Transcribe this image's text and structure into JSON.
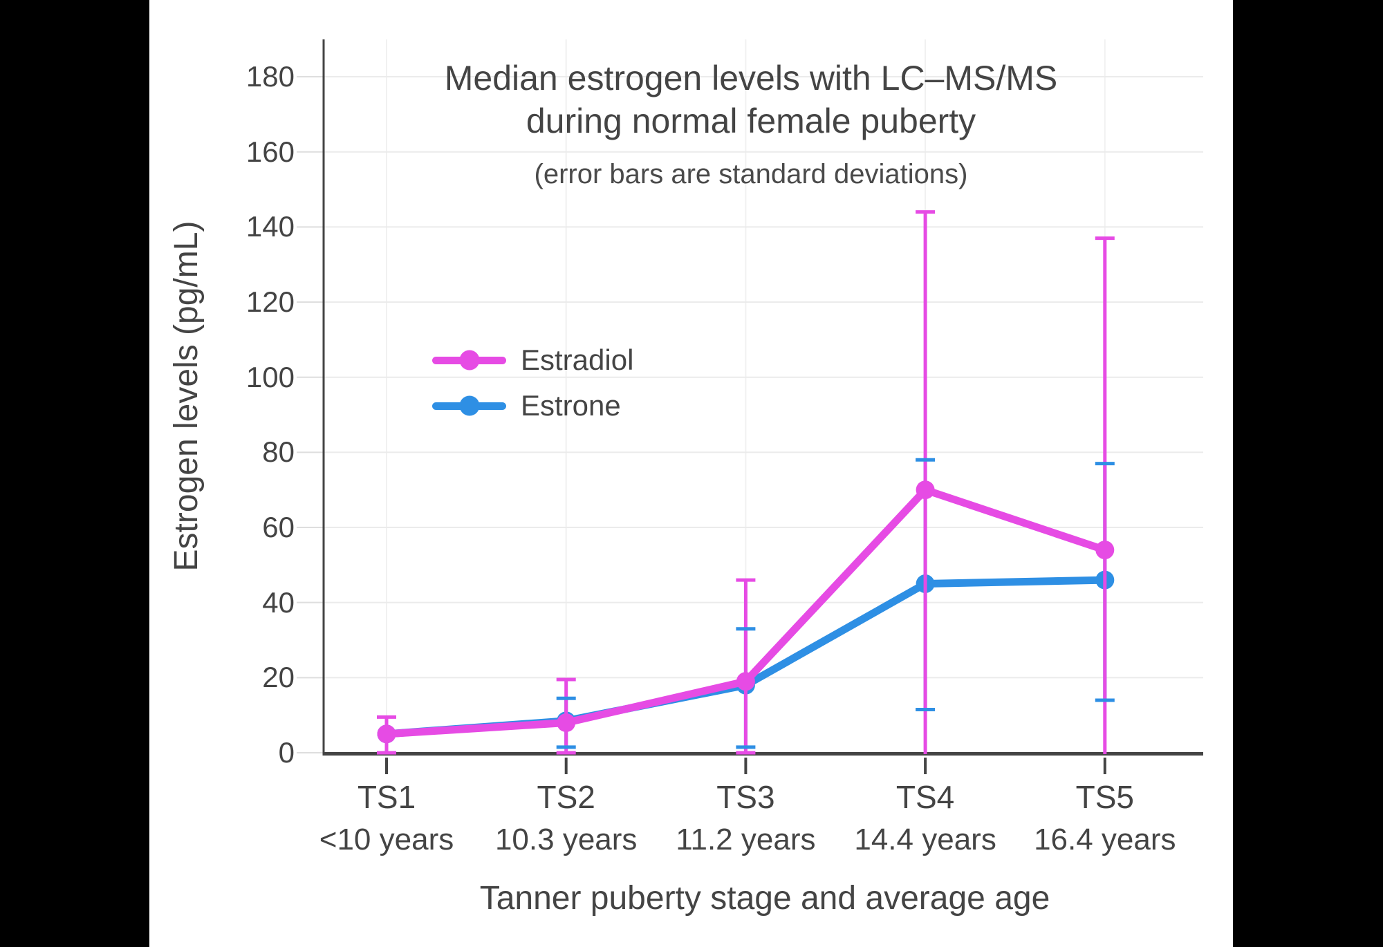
{
  "colors": {
    "page_background": "#000000",
    "chart_background": "#ffffff",
    "text": "#444444",
    "axis": "#444444",
    "grid_horizontal": "#ebebeb",
    "grid_vertical": "#f1f1f1",
    "tick_stub": "#dedede"
  },
  "header": {
    "title_line1": "Median estrogen levels with LC–MS/MS",
    "title_line2": "during normal female puberty",
    "subtitle": "(error bars are standard deviations)"
  },
  "axes": {
    "y_title": "Estrogen levels (pg/mL)",
    "x_title": "Tanner puberty stage and average age",
    "y_ticks": [
      0,
      20,
      40,
      60,
      80,
      100,
      120,
      140,
      160,
      180
    ]
  },
  "chart_data": {
    "type": "line",
    "title": "Median estrogen levels with LC–MS/MS during normal female puberty",
    "subtitle": "(error bars are standard deviations)",
    "xlabel": "Tanner puberty stage and average age",
    "ylabel": "Estrogen levels (pg/mL)",
    "categories": [
      "TS1",
      "TS2",
      "TS3",
      "TS4",
      "TS5"
    ],
    "category_sublabels": [
      "<10 years",
      "10.3 years",
      "11.2 years",
      "14.4 years",
      "16.4 years"
    ],
    "ylim": [
      0,
      190
    ],
    "ytick_step": 20,
    "grid": true,
    "legend_position": "inside top-left",
    "error_bars": "standard deviations",
    "series": [
      {
        "name": "Estradiol",
        "color": "#e64be4",
        "values": [
          5,
          8,
          19,
          70,
          54
        ],
        "error_high": [
          9.5,
          19.5,
          46,
          144,
          137
        ],
        "error_low": [
          0,
          0,
          0,
          0,
          0
        ],
        "error_low_capped": [
          true,
          true,
          true,
          false,
          false
        ]
      },
      {
        "name": "Estrone",
        "color": "#2e8fe4",
        "values": [
          5,
          8.5,
          18,
          45,
          46
        ],
        "error_high": [
          null,
          14.5,
          33,
          78,
          77
        ],
        "error_low": [
          null,
          1.5,
          1.5,
          11.5,
          14
        ],
        "error_low_capped": [
          false,
          true,
          true,
          true,
          true
        ]
      }
    ]
  }
}
